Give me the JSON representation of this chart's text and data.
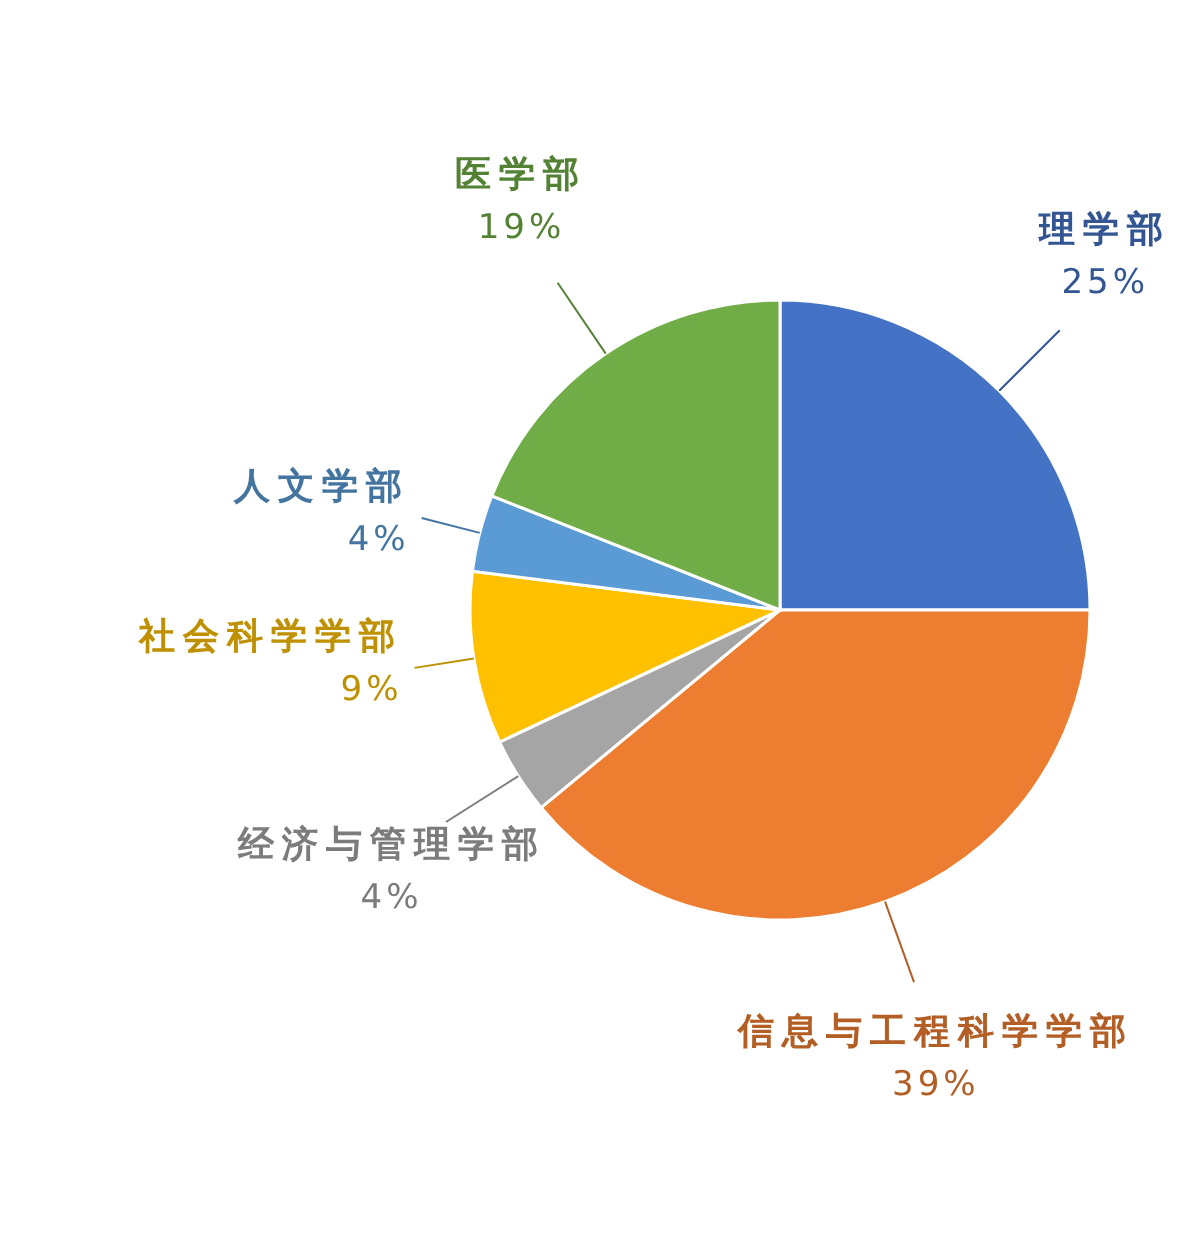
{
  "chart_data": {
    "type": "pie",
    "categories": [
      "理学部",
      "信息与工程科学学部",
      "经济与管理学部",
      "社会科学学部",
      "人文学部",
      "医学部"
    ],
    "values": [
      25,
      39,
      4,
      9,
      4,
      19
    ],
    "colors": [
      "#4472c4",
      "#ed7d31",
      "#a5a5a5",
      "#ffc000",
      "#5b9bd5",
      "#70ad47"
    ],
    "value_labels": [
      "25%",
      "39%",
      "4%",
      "9%",
      "4%",
      "19%"
    ]
  }
}
